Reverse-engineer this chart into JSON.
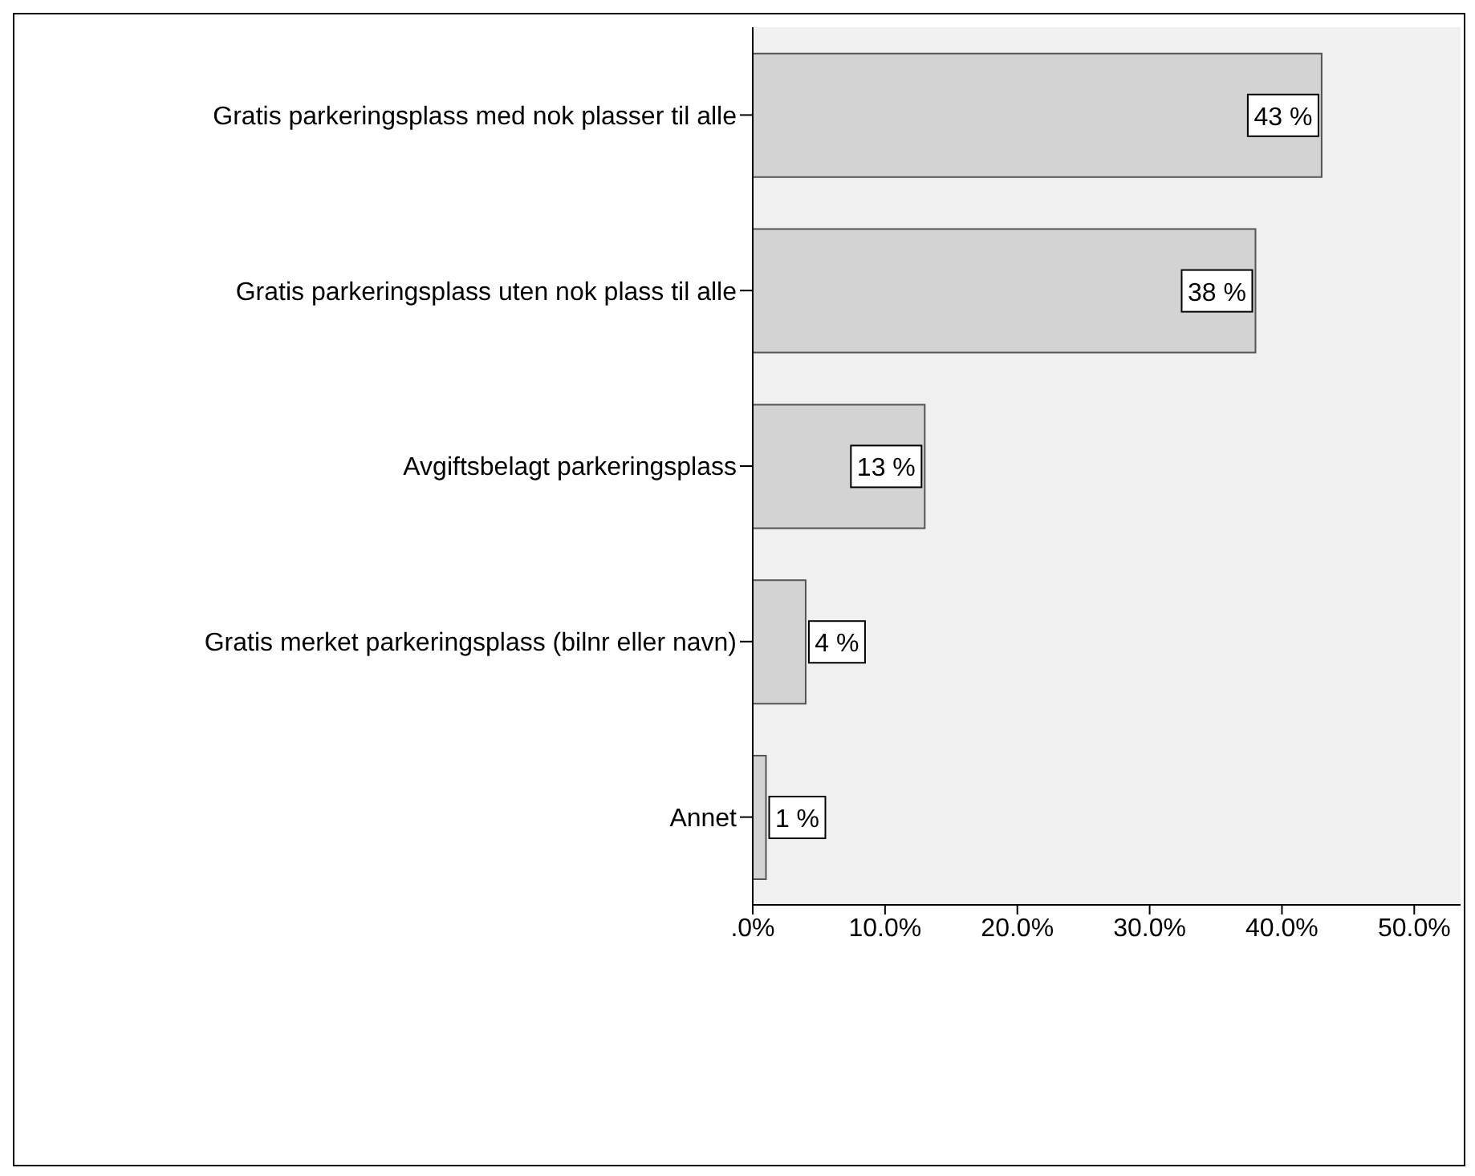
{
  "chart_data": {
    "type": "bar",
    "orientation": "horizontal",
    "categories": [
      "Gratis parkeringsplass med nok plasser til alle",
      "Gratis parkeringsplass uten nok plass til alle",
      "Avgiftsbelagt parkeringsplass",
      "Gratis merket parkeringsplass (bilnr eller navn)",
      "Annet"
    ],
    "values": [
      43,
      38,
      13,
      4,
      1
    ],
    "value_labels": [
      "43 %",
      "38 %",
      "13 %",
      "4 %",
      "1 %"
    ],
    "color": "#d3d3d3",
    "xlim": [
      0,
      53.5
    ],
    "xticks": [
      {
        "value": 0,
        "label": ".0%"
      },
      {
        "value": 10,
        "label": "10.0%"
      },
      {
        "value": 20,
        "label": "20.0%"
      },
      {
        "value": 30,
        "label": "30.0%"
      },
      {
        "value": 40,
        "label": "40.0%"
      },
      {
        "value": 50,
        "label": "50.0%"
      }
    ],
    "legend": false
  }
}
